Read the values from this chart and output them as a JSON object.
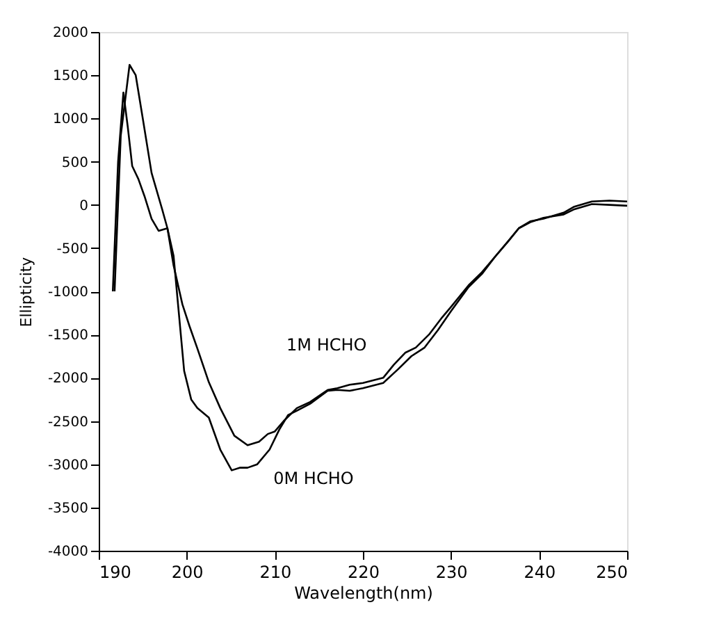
{
  "chart_data": {
    "type": "line",
    "xlabel": "Wavelength(nm)",
    "ylabel": "Ellipticity",
    "xlim": [
      190,
      250
    ],
    "xticks": [
      190,
      200,
      210,
      220,
      230,
      240,
      250
    ],
    "ylim": [
      -4000,
      2000
    ],
    "yticks": [
      -4000,
      -3500,
      -3000,
      -2500,
      -2000,
      -1500,
      -1000,
      -500,
      0,
      500,
      1000,
      1500,
      2000
    ],
    "grid": false,
    "legend": false,
    "marker": "none",
    "line_style": "solid",
    "series": [
      {
        "name": "0M HCHO",
        "color": "#000000",
        "x": [
          191.6,
          192.2,
          192.8,
          193.3,
          193.8,
          194.5,
          195.2,
          196,
          196.8,
          197.8,
          198.5,
          199.7,
          200.5,
          201.2,
          202.5,
          203.8,
          205.1,
          206,
          206.9,
          208,
          209.4,
          210.5,
          211.5,
          212.5,
          214,
          216,
          217.1,
          218.5,
          220,
          222.3,
          224,
          225.5,
          227,
          228.5,
          230,
          232,
          233.5,
          235,
          236.5,
          237.7,
          239,
          240.5,
          242.8,
          244,
          246,
          248,
          250
        ],
        "values": [
          -1000,
          500,
          1300,
          900,
          450,
          300,
          100,
          -160,
          -300,
          -270,
          -590,
          -1920,
          -2250,
          -2350,
          -2460,
          -2830,
          -3070,
          -3040,
          -3040,
          -3000,
          -2830,
          -2600,
          -2430,
          -2380,
          -2300,
          -2150,
          -2140,
          -2150,
          -2120,
          -2060,
          -1900,
          -1750,
          -1650,
          -1450,
          -1230,
          -950,
          -800,
          -600,
          -420,
          -270,
          -200,
          -150,
          -110,
          -50,
          10,
          0,
          -10
        ]
      },
      {
        "name": "1M HCHO",
        "color": "#000000",
        "x": [
          191.8,
          192.5,
          193.5,
          194.2,
          195,
          196,
          197.2,
          197.8,
          198.5,
          199.5,
          200.3,
          201.2,
          202.5,
          203.8,
          205.4,
          206.9,
          208.2,
          209.2,
          210,
          211,
          212.5,
          214,
          216,
          217.1,
          218.5,
          220,
          222.3,
          223.5,
          224.8,
          226,
          227.5,
          229,
          230,
          232,
          233.5,
          235,
          236.5,
          237.7,
          239,
          240.5,
          242.8,
          244,
          246,
          248,
          250
        ],
        "values": [
          -1000,
          800,
          1620,
          1500,
          1000,
          370,
          -50,
          -270,
          -700,
          -1150,
          -1400,
          -1660,
          -2050,
          -2350,
          -2670,
          -2780,
          -2740,
          -2650,
          -2620,
          -2500,
          -2350,
          -2280,
          -2140,
          -2120,
          -2080,
          -2060,
          -2000,
          -1850,
          -1710,
          -1650,
          -1500,
          -1300,
          -1180,
          -930,
          -780,
          -600,
          -420,
          -270,
          -190,
          -160,
          -90,
          -20,
          40,
          50,
          40
        ]
      }
    ]
  }
}
